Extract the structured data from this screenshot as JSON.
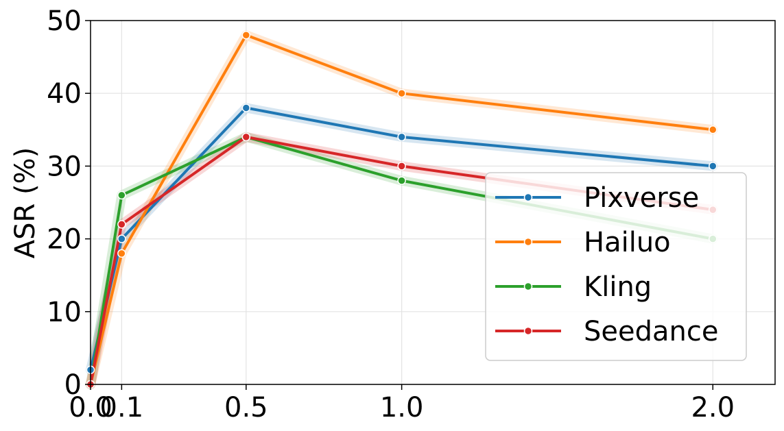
{
  "chart_data": {
    "type": "line",
    "title": "",
    "xlabel": "",
    "ylabel": "ASR (%)",
    "x": [
      0.0,
      0.1,
      0.5,
      1.0,
      2.0
    ],
    "xticks": [
      "0.0",
      "0.1",
      "0.5",
      "1.0",
      "2.0"
    ],
    "xlim": [
      0.0,
      2.2
    ],
    "ylim": [
      0,
      50
    ],
    "yticks": [
      "0",
      "10",
      "20",
      "30",
      "40",
      "50"
    ],
    "grid": true,
    "legend_position": "center-right",
    "series": [
      {
        "name": "Pixverse",
        "color": "#1f77b4",
        "values": [
          2,
          20,
          38,
          34,
          30
        ]
      },
      {
        "name": "Hailuo",
        "color": "#ff7f0e",
        "values": [
          0,
          18,
          48,
          40,
          35
        ]
      },
      {
        "name": "Kling",
        "color": "#2ca02c",
        "values": [
          0,
          26,
          34,
          28,
          20
        ]
      },
      {
        "name": "Seedance",
        "color": "#d62728",
        "values": [
          0,
          22,
          34,
          30,
          24
        ]
      }
    ]
  }
}
